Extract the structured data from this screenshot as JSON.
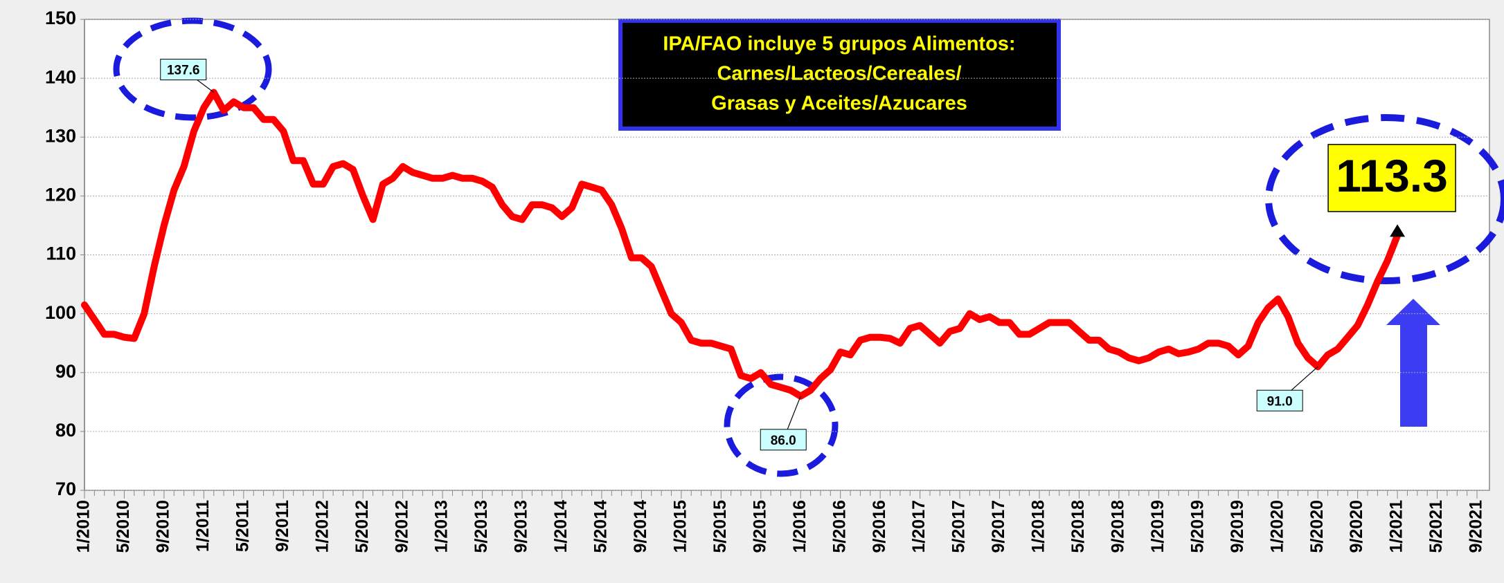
{
  "chart_data": {
    "type": "line",
    "annotation": [
      "IPA/FAO incluye 5 grupos  Alimentos:",
      "Carnes/Lacteos/Cereales/",
      "Grasas y Aceites/Azucares"
    ],
    "categories": [
      "1/2010",
      null,
      null,
      null,
      "5/2010",
      null,
      null,
      null,
      "9/2010",
      null,
      null,
      null,
      "1/2011",
      null,
      null,
      null,
      "5/2011",
      null,
      null,
      null,
      "9/2011",
      null,
      null,
      null,
      "1/2012",
      null,
      null,
      null,
      "5/2012",
      null,
      null,
      null,
      "9/2012",
      null,
      null,
      null,
      "1/2013",
      null,
      null,
      null,
      "5/2013",
      null,
      null,
      null,
      "9/2013",
      null,
      null,
      null,
      "1/2014",
      null,
      null,
      null,
      "5/2014",
      null,
      null,
      null,
      "9/2014",
      null,
      null,
      null,
      "1/2015",
      null,
      null,
      null,
      "5/2015",
      null,
      null,
      null,
      "9/2015",
      null,
      null,
      null,
      "1/2016",
      null,
      null,
      null,
      "5/2016",
      null,
      null,
      null,
      "9/2016",
      null,
      null,
      null,
      "1/2017",
      null,
      null,
      null,
      "5/2017",
      null,
      null,
      null,
      "9/2017",
      null,
      null,
      null,
      "1/2018",
      null,
      null,
      null,
      "5/2018",
      null,
      null,
      null,
      "9/2018",
      null,
      null,
      null,
      "1/2019",
      null,
      null,
      null,
      "5/2019",
      null,
      null,
      null,
      "9/2019",
      null,
      null,
      null,
      "1/2020",
      null,
      null,
      null,
      "5/2020",
      null,
      null,
      null,
      "9/2020",
      null,
      null,
      null,
      "1/2021",
      null,
      null,
      null,
      "5/2021",
      null,
      null,
      null,
      "9/2021"
    ],
    "series": [
      {
        "name": "IPA/FAO",
        "color": "#ff0000",
        "values": [
          101.5,
          99,
          96.5,
          96.5,
          96,
          95.8,
          100,
          108,
          115,
          121,
          125,
          131,
          135,
          137.6,
          134.5,
          136,
          135,
          135,
          133,
          133,
          131,
          126,
          126,
          122,
          122,
          125,
          125.5,
          124.5,
          120,
          116,
          122,
          123,
          125,
          124,
          123.5,
          123,
          123,
          123.5,
          123,
          123,
          122.5,
          121.5,
          118.5,
          116.5,
          116,
          118.5,
          118.5,
          118,
          116.5,
          118,
          122,
          121.5,
          121,
          118.5,
          114.5,
          109.5,
          109.5,
          108,
          104,
          100,
          98.5,
          95.5,
          95,
          95,
          94.5,
          94,
          89.5,
          89,
          90,
          88,
          87.5,
          87,
          86,
          87,
          89,
          90.5,
          93.5,
          93,
          95.5,
          96,
          96,
          95.8,
          95,
          97.5,
          98,
          96.5,
          95,
          97,
          97.5,
          100,
          99,
          99.5,
          98.5,
          98.5,
          96.5,
          96.5,
          97.5,
          98.5,
          98.5,
          98.5,
          97,
          95.5,
          95.5,
          94,
          93.5,
          92.5,
          92,
          92.5,
          93.5,
          94,
          93.2,
          93.5,
          94,
          95,
          95,
          94.5,
          93,
          94.5,
          98.5,
          101,
          102.5,
          99.5,
          95,
          92.5,
          91,
          93,
          94,
          96,
          98,
          101.5,
          105.5,
          109,
          113.3,
          null,
          null,
          null,
          null,
          null,
          null,
          null,
          null
        ],
        "value_labels": [
          null,
          null,
          null,
          null,
          null,
          null,
          null,
          null,
          null,
          null,
          null,
          null,
          null,
          "137.6",
          null,
          null,
          null,
          null,
          null,
          null,
          null,
          null,
          null,
          null,
          null,
          null,
          null,
          null,
          null,
          null,
          null,
          null,
          null,
          null,
          null,
          null,
          null,
          null,
          null,
          null,
          null,
          null,
          null,
          null,
          null,
          null,
          null,
          null,
          null,
          null,
          null,
          null,
          null,
          null,
          null,
          null,
          null,
          null,
          null,
          null,
          null,
          null,
          null,
          null,
          null,
          null,
          null,
          null,
          null,
          null,
          null,
          null,
          "86.0",
          null,
          null,
          null,
          null,
          null,
          null,
          null,
          null,
          null,
          null,
          null,
          null,
          null,
          null,
          null,
          null,
          null,
          null,
          null,
          null,
          null,
          null,
          null,
          null,
          null,
          null,
          null,
          null,
          null,
          null,
          null,
          null,
          null,
          null,
          null,
          null,
          null,
          null,
          null,
          null,
          null,
          null,
          null,
          null,
          null,
          null,
          null,
          null,
          null,
          null,
          null,
          "91.0",
          null,
          null,
          null,
          null,
          null,
          null,
          null,
          "113.3",
          null,
          null,
          null,
          null,
          null,
          null,
          null,
          null
        ]
      }
    ],
    "ylim": [
      70,
      150
    ],
    "yticks": [
      70,
      80,
      90,
      100,
      110,
      120,
      130,
      140,
      150
    ],
    "grid": true
  }
}
